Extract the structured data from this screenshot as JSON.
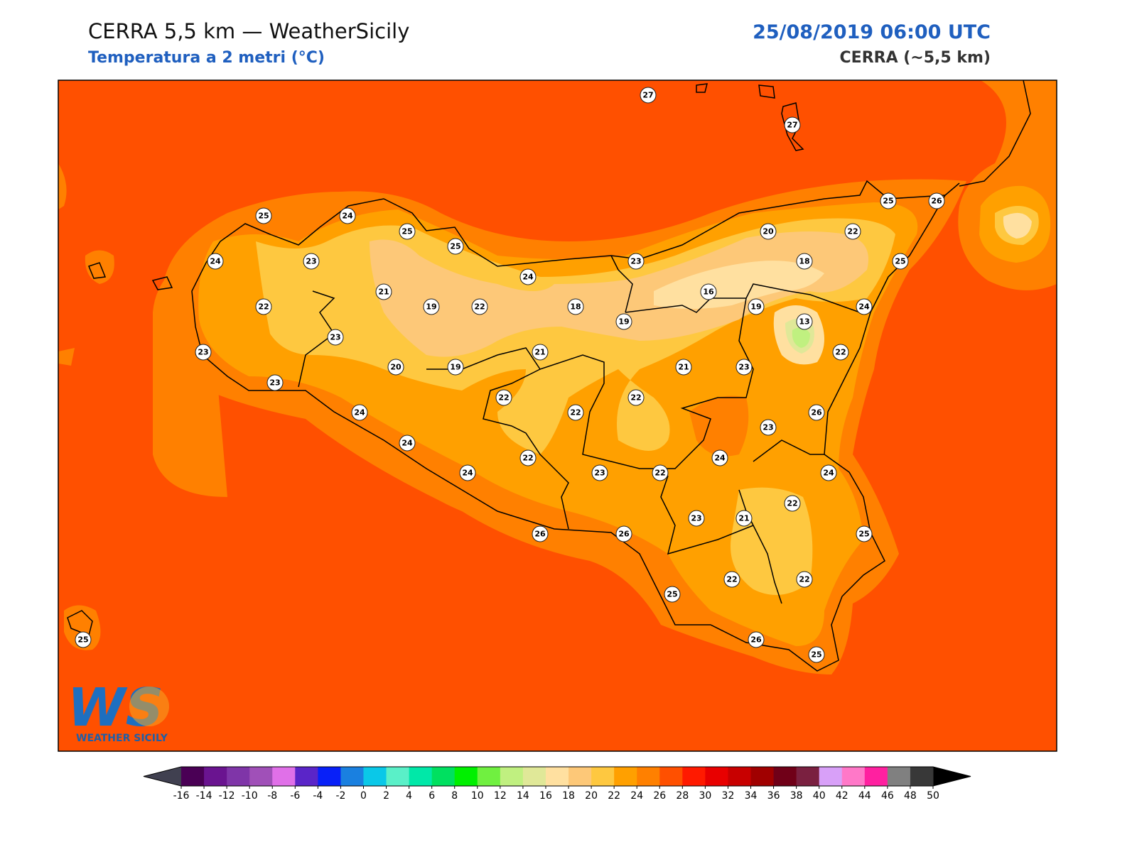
{
  "header": {
    "title": "CERRA 5,5 km — WeatherSicily",
    "subtitle": "Temperatura a 2 metri (°C)",
    "datetime": "25/08/2019 06:00 UTC",
    "model": "CERRA (~5,5 km)"
  },
  "logo": {
    "text": "WEATHER SICILY"
  },
  "stations": [
    27,
    27,
    25,
    24,
    25,
    25,
    25,
    26,
    20,
    22,
    24,
    23,
    24,
    23,
    18,
    25,
    21,
    16,
    22,
    19,
    22,
    18,
    19,
    24,
    19,
    13,
    23,
    23,
    21,
    22,
    20,
    19,
    21,
    23,
    23,
    22,
    22,
    24,
    22,
    26,
    23,
    24,
    22,
    24,
    24,
    23,
    22,
    24,
    22,
    23,
    21,
    26,
    26,
    25,
    22,
    22,
    25,
    25,
    26,
    25
  ],
  "colorbar": {
    "ticks": [
      -16,
      -14,
      -12,
      -10,
      -8,
      -6,
      -4,
      -2,
      0,
      2,
      4,
      6,
      8,
      10,
      12,
      14,
      16,
      18,
      20,
      22,
      24,
      26,
      28,
      30,
      32,
      34,
      36,
      38,
      40,
      42,
      44,
      46,
      48,
      50
    ],
    "colors": [
      "#4a0055",
      "#6a1490",
      "#7f35a8",
      "#a050b8",
      "#e070e8",
      "#5a25c8",
      "#0820f8",
      "#1a80e0",
      "#0ac8e8",
      "#5af0c8",
      "#00e8a8",
      "#00e060",
      "#00f000",
      "#70f040",
      "#c0f080",
      "#e0e898",
      "#ffe0a0",
      "#fdc878",
      "#fec840",
      "#ffa000",
      "#ff8000",
      "#ff5000",
      "#ff1a00",
      "#e80000",
      "#c80000",
      "#a00000",
      "#700018",
      "#7a2040",
      "#d8a0f8",
      "#ff78c8",
      "#ff20a0",
      "#808080",
      "#383838"
    ],
    "under": "#404050",
    "over": "#000000"
  }
}
